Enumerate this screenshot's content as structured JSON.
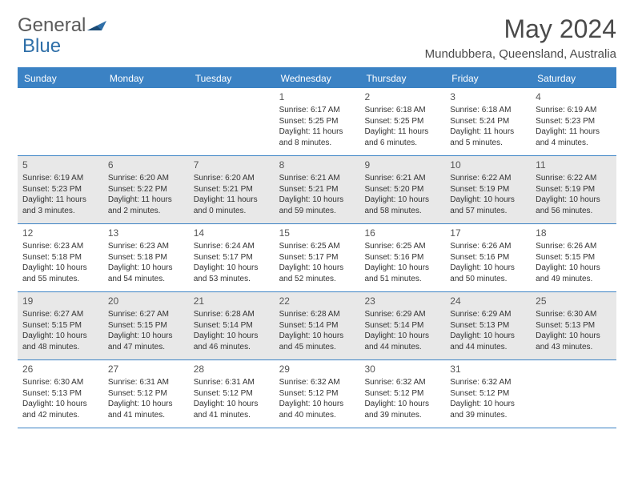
{
  "logo": {
    "text_part1": "General",
    "text_part2": "Blue"
  },
  "title": "May 2024",
  "location": "Mundubbera, Queensland, Australia",
  "colors": {
    "header_bg": "#3b82c4",
    "header_text": "#ffffff",
    "border": "#3b82c4",
    "shaded_bg": "#e8e8e8",
    "text": "#333333",
    "logo_gray": "#5a5a5a",
    "logo_blue": "#2f6fa8"
  },
  "day_names": [
    "Sunday",
    "Monday",
    "Tuesday",
    "Wednesday",
    "Thursday",
    "Friday",
    "Saturday"
  ],
  "weeks": [
    [
      {
        "empty": true
      },
      {
        "empty": true
      },
      {
        "empty": true
      },
      {
        "num": "1",
        "sunrise": "6:17 AM",
        "sunset": "5:25 PM",
        "daylight": "11 hours and 8 minutes."
      },
      {
        "num": "2",
        "sunrise": "6:18 AM",
        "sunset": "5:25 PM",
        "daylight": "11 hours and 6 minutes."
      },
      {
        "num": "3",
        "sunrise": "6:18 AM",
        "sunset": "5:24 PM",
        "daylight": "11 hours and 5 minutes."
      },
      {
        "num": "4",
        "sunrise": "6:19 AM",
        "sunset": "5:23 PM",
        "daylight": "11 hours and 4 minutes."
      }
    ],
    [
      {
        "num": "5",
        "sunrise": "6:19 AM",
        "sunset": "5:23 PM",
        "daylight": "11 hours and 3 minutes."
      },
      {
        "num": "6",
        "sunrise": "6:20 AM",
        "sunset": "5:22 PM",
        "daylight": "11 hours and 2 minutes."
      },
      {
        "num": "7",
        "sunrise": "6:20 AM",
        "sunset": "5:21 PM",
        "daylight": "11 hours and 0 minutes."
      },
      {
        "num": "8",
        "sunrise": "6:21 AM",
        "sunset": "5:21 PM",
        "daylight": "10 hours and 59 minutes."
      },
      {
        "num": "9",
        "sunrise": "6:21 AM",
        "sunset": "5:20 PM",
        "daylight": "10 hours and 58 minutes."
      },
      {
        "num": "10",
        "sunrise": "6:22 AM",
        "sunset": "5:19 PM",
        "daylight": "10 hours and 57 minutes."
      },
      {
        "num": "11",
        "sunrise": "6:22 AM",
        "sunset": "5:19 PM",
        "daylight": "10 hours and 56 minutes."
      }
    ],
    [
      {
        "num": "12",
        "sunrise": "6:23 AM",
        "sunset": "5:18 PM",
        "daylight": "10 hours and 55 minutes."
      },
      {
        "num": "13",
        "sunrise": "6:23 AM",
        "sunset": "5:18 PM",
        "daylight": "10 hours and 54 minutes."
      },
      {
        "num": "14",
        "sunrise": "6:24 AM",
        "sunset": "5:17 PM",
        "daylight": "10 hours and 53 minutes."
      },
      {
        "num": "15",
        "sunrise": "6:25 AM",
        "sunset": "5:17 PM",
        "daylight": "10 hours and 52 minutes."
      },
      {
        "num": "16",
        "sunrise": "6:25 AM",
        "sunset": "5:16 PM",
        "daylight": "10 hours and 51 minutes."
      },
      {
        "num": "17",
        "sunrise": "6:26 AM",
        "sunset": "5:16 PM",
        "daylight": "10 hours and 50 minutes."
      },
      {
        "num": "18",
        "sunrise": "6:26 AM",
        "sunset": "5:15 PM",
        "daylight": "10 hours and 49 minutes."
      }
    ],
    [
      {
        "num": "19",
        "sunrise": "6:27 AM",
        "sunset": "5:15 PM",
        "daylight": "10 hours and 48 minutes."
      },
      {
        "num": "20",
        "sunrise": "6:27 AM",
        "sunset": "5:15 PM",
        "daylight": "10 hours and 47 minutes."
      },
      {
        "num": "21",
        "sunrise": "6:28 AM",
        "sunset": "5:14 PM",
        "daylight": "10 hours and 46 minutes."
      },
      {
        "num": "22",
        "sunrise": "6:28 AM",
        "sunset": "5:14 PM",
        "daylight": "10 hours and 45 minutes."
      },
      {
        "num": "23",
        "sunrise": "6:29 AM",
        "sunset": "5:14 PM",
        "daylight": "10 hours and 44 minutes."
      },
      {
        "num": "24",
        "sunrise": "6:29 AM",
        "sunset": "5:13 PM",
        "daylight": "10 hours and 44 minutes."
      },
      {
        "num": "25",
        "sunrise": "6:30 AM",
        "sunset": "5:13 PM",
        "daylight": "10 hours and 43 minutes."
      }
    ],
    [
      {
        "num": "26",
        "sunrise": "6:30 AM",
        "sunset": "5:13 PM",
        "daylight": "10 hours and 42 minutes."
      },
      {
        "num": "27",
        "sunrise": "6:31 AM",
        "sunset": "5:12 PM",
        "daylight": "10 hours and 41 minutes."
      },
      {
        "num": "28",
        "sunrise": "6:31 AM",
        "sunset": "5:12 PM",
        "daylight": "10 hours and 41 minutes."
      },
      {
        "num": "29",
        "sunrise": "6:32 AM",
        "sunset": "5:12 PM",
        "daylight": "10 hours and 40 minutes."
      },
      {
        "num": "30",
        "sunrise": "6:32 AM",
        "sunset": "5:12 PM",
        "daylight": "10 hours and 39 minutes."
      },
      {
        "num": "31",
        "sunrise": "6:32 AM",
        "sunset": "5:12 PM",
        "daylight": "10 hours and 39 minutes."
      },
      {
        "empty": true
      }
    ]
  ],
  "labels": {
    "sunrise": "Sunrise:",
    "sunset": "Sunset:",
    "daylight": "Daylight:"
  }
}
